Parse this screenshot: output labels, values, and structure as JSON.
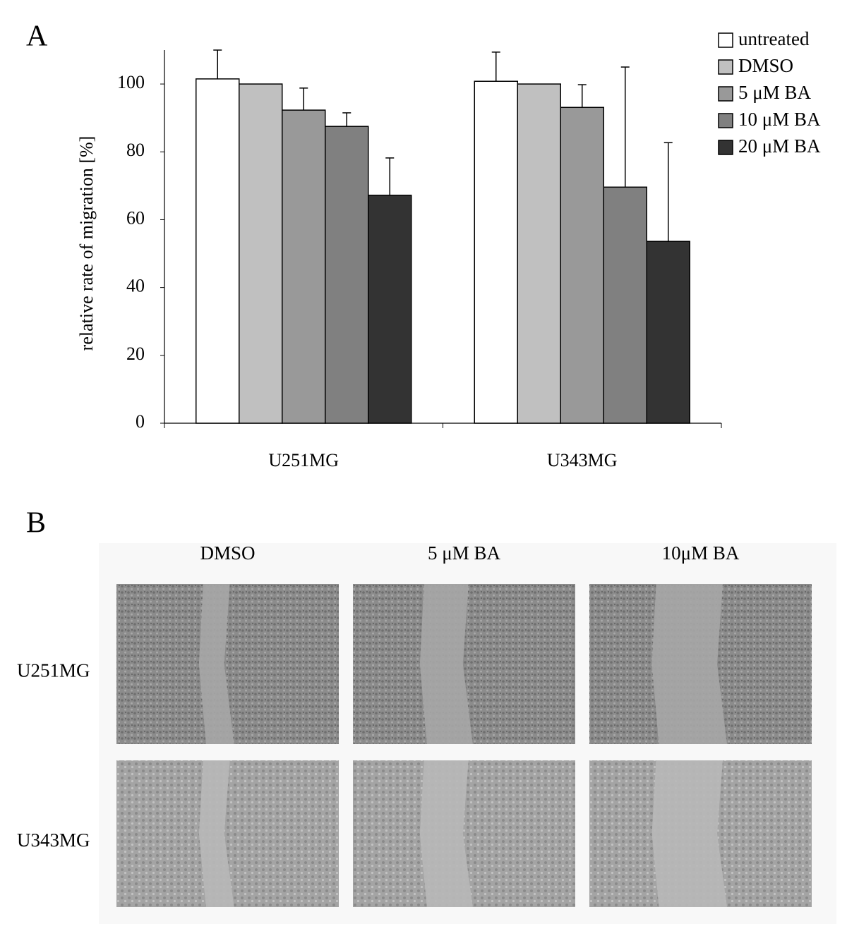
{
  "chart_data": {
    "type": "bar",
    "panel_label": "A",
    "ylabel": "relative rate of migration [%]",
    "categories": [
      "U251MG",
      "U343MG"
    ],
    "series": [
      {
        "name": "untreated",
        "color": "#ffffff",
        "values": [
          101.5,
          100.8
        ],
        "errors": [
          8.5,
          8.6
        ]
      },
      {
        "name": "DMSO",
        "color": "#c0c0c0",
        "values": [
          100,
          100
        ],
        "errors": [
          null,
          null
        ]
      },
      {
        "name": "5 μM BA",
        "color": "#999999",
        "values": [
          92.3,
          93.1
        ],
        "errors": [
          6.5,
          6.7
        ]
      },
      {
        "name": "10 μM BA",
        "color": "#808080",
        "values": [
          87.5,
          69.6
        ],
        "errors": [
          4,
          35.4
        ]
      },
      {
        "name": "20 μM BA",
        "color": "#333333",
        "values": [
          67.2,
          53.6
        ],
        "errors": [
          11,
          29.1
        ]
      }
    ],
    "ylim": [
      0,
      110
    ],
    "yticks": [
      0,
      20,
      40,
      60,
      80,
      100
    ],
    "legend": "top-right"
  },
  "panel_b": {
    "label": "B",
    "columns": [
      "DMSO",
      "5 μM BA",
      "10μM BA"
    ],
    "rows": [
      "U251MG",
      "U343MG"
    ]
  }
}
